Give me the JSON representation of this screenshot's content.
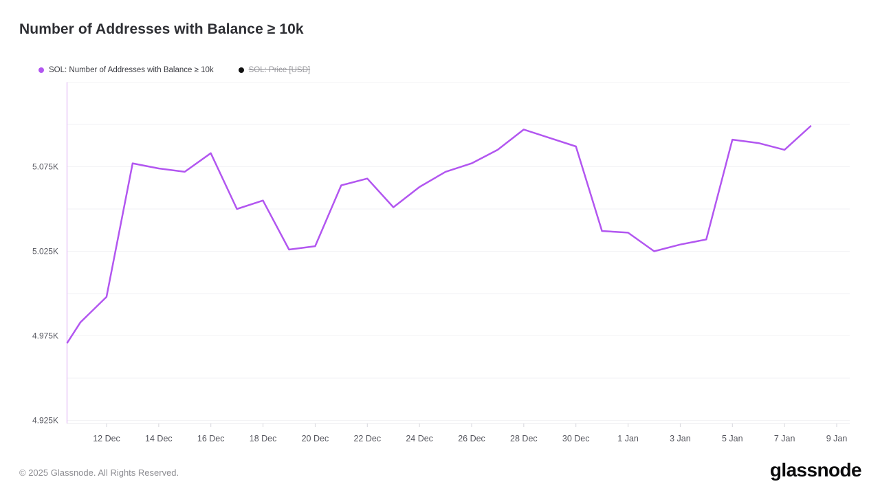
{
  "page": {
    "title": "Number of Addresses with Balance ≥ 10k",
    "footer_copyright": "© 2025 Glassnode. All Rights Reserved.",
    "brand_logo": "glassnode"
  },
  "legend": {
    "items": [
      {
        "label": "SOL: Number of Addresses with Balance ≥ 10k",
        "color": "#b256f0",
        "enabled": true
      },
      {
        "label": "SOL: Price [USD]",
        "color": "#111111",
        "enabled": false
      }
    ]
  },
  "chart_data": {
    "type": "line",
    "title": "Number of Addresses with Balance ≥ 10k",
    "legend_position": "top-left",
    "grid": "horizontal-only",
    "line_color": "#b256f0",
    "axis_colors": {
      "left_axis_line": "#e9c9f8",
      "bottom_axis_line": "#e8e8ec",
      "gridline": "#f2f2f5",
      "tick": "#d6d6dc",
      "tick_label": "#55565e"
    },
    "y_axis": {
      "unit": "K",
      "min": 4.925,
      "max": 5.125,
      "gridline_step": 0.025,
      "tick_labels": [
        "5.075K",
        "5.025K",
        "4.975K",
        "4.925K"
      ],
      "label_values": [
        5.075,
        5.025,
        4.975,
        4.925
      ]
    },
    "x_axis": {
      "tick_labels": [
        "12 Dec",
        "14 Dec",
        "16 Dec",
        "18 Dec",
        "20 Dec",
        "22 Dec",
        "24 Dec",
        "26 Dec",
        "28 Dec",
        "30 Dec",
        "1 Jan",
        "3 Jan",
        "5 Jan",
        "7 Jan",
        "9 Jan"
      ]
    },
    "series": [
      {
        "name": "SOL: Number of Addresses with Balance ≥ 10k",
        "color": "#b256f0",
        "unit": "K",
        "x": [
          "10 Dec",
          "11 Dec",
          "12 Dec",
          "13 Dec",
          "14 Dec",
          "15 Dec",
          "16 Dec",
          "17 Dec",
          "18 Dec",
          "19 Dec",
          "20 Dec",
          "21 Dec",
          "22 Dec",
          "23 Dec",
          "24 Dec",
          "25 Dec",
          "26 Dec",
          "27 Dec",
          "28 Dec",
          "29 Dec",
          "30 Dec",
          "31 Dec",
          "1 Jan",
          "2 Jan",
          "3 Jan",
          "4 Jan",
          "5 Jan",
          "6 Jan",
          "7 Jan",
          "8 Jan"
        ],
        "values": [
          4.971,
          4.983,
          4.998,
          5.077,
          5.074,
          5.072,
          5.083,
          5.05,
          5.055,
          5.026,
          5.028,
          5.064,
          5.068,
          5.051,
          5.063,
          5.072,
          5.077,
          5.085,
          5.097,
          5.092,
          5.087,
          5.037,
          5.036,
          5.025,
          5.029,
          5.032,
          5.091,
          5.089,
          5.085,
          5.099
        ]
      },
      {
        "name": "SOL: Price [USD]",
        "color": "#111111",
        "visible": false,
        "values": []
      }
    ]
  }
}
